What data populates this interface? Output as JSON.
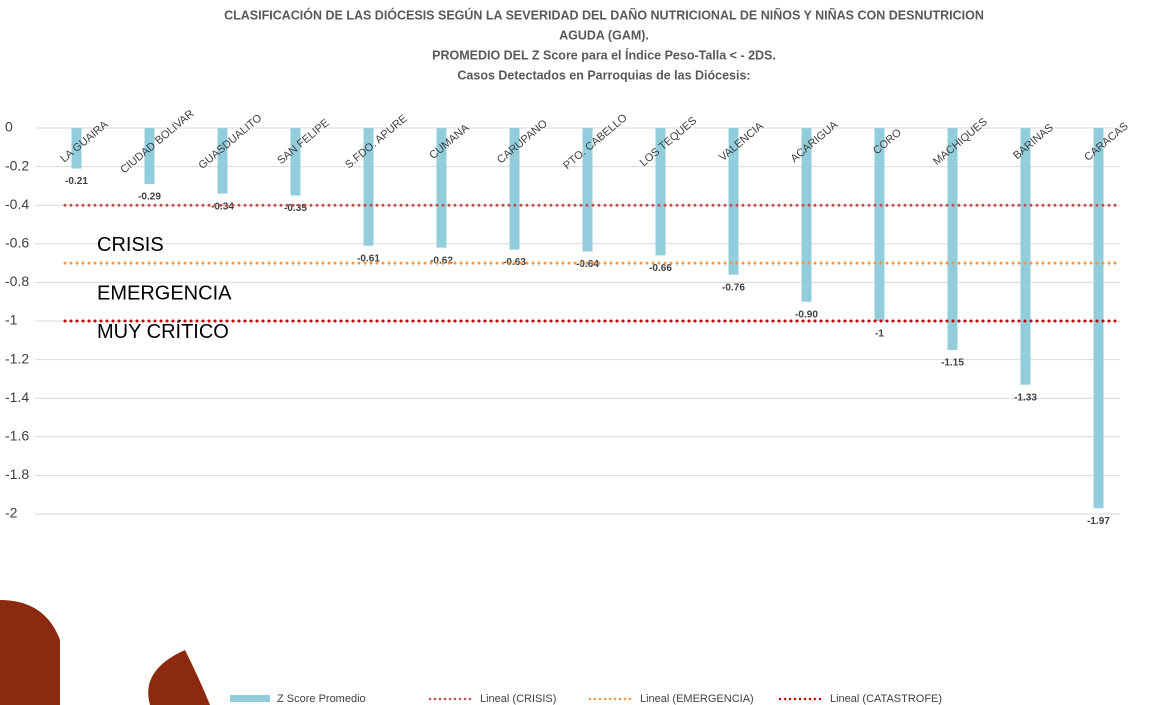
{
  "chart_data": {
    "type": "bar",
    "title_lines": [
      "CLASIFICACIÓN DE LAS DIÓCESIS SEGÚN LA SEVERIDAD DEL DAÑO NUTRICIONAL DE NIÑOS Y NIÑAS CON DESNUTRICION",
      "AGUDA (GAM).",
      "PROMEDIO DEL  Z Score para el Índice Peso-Talla < - 2DS.",
      "Casos Detectados en Parroquias de las Diócesis:"
    ],
    "categories": [
      "LA GUAIRA",
      "CIUDAD BOLIVAR",
      "GUASDUALITO",
      "SAN FELIPE",
      "S.FDO. APURE",
      "CUMANA",
      "CARUPANO",
      "PTO. CABELLO",
      "LOS TEQUES",
      "VALENCIA",
      "ACARIGUA",
      "CORO",
      "MACHIQUES",
      "BARINAS",
      "CARACAS"
    ],
    "series": [
      {
        "name": "Z Score Promedio",
        "color": "#92cddc",
        "values": [
          -0.21,
          -0.29,
          -0.34,
          -0.35,
          -0.61,
          -0.62,
          -0.63,
          -0.64,
          -0.66,
          -0.76,
          -0.9,
          -1,
          -1.15,
          -1.33,
          -1.97
        ],
        "value_labels": [
          "-0.21",
          "-0.29",
          "-0.34",
          "-0.35",
          "-0.61",
          "-0.62",
          "-0.63",
          "-0.64",
          "-0.66",
          "-0.76",
          "-0.90",
          "-1",
          "-1.15",
          "-1.33",
          "-1.97"
        ]
      }
    ],
    "reference_lines": [
      {
        "name": "Lineal (CRISIS)",
        "color": "#c0504d",
        "value": -0.4
      },
      {
        "name": "Lineal (EMERGENCIA)",
        "color": "#f79646",
        "value": -0.7
      },
      {
        "name": "Lineal (CATASTROFE)",
        "color": "#c00000",
        "value": -1
      }
    ],
    "annotations": [
      {
        "text": "CRISIS",
        "y": -0.6
      },
      {
        "text": "EMERGENCIA",
        "y": -0.85
      },
      {
        "text": "MUY CRÍTICO",
        "y": -1.05
      }
    ],
    "ylim": [
      -2,
      0
    ],
    "yticks": [
      0,
      -0.2,
      -0.4,
      -0.6,
      -0.8,
      -1,
      -1.2,
      -1.4,
      -1.6,
      -1.8,
      -2
    ],
    "grid": true,
    "legend": "bottom"
  }
}
